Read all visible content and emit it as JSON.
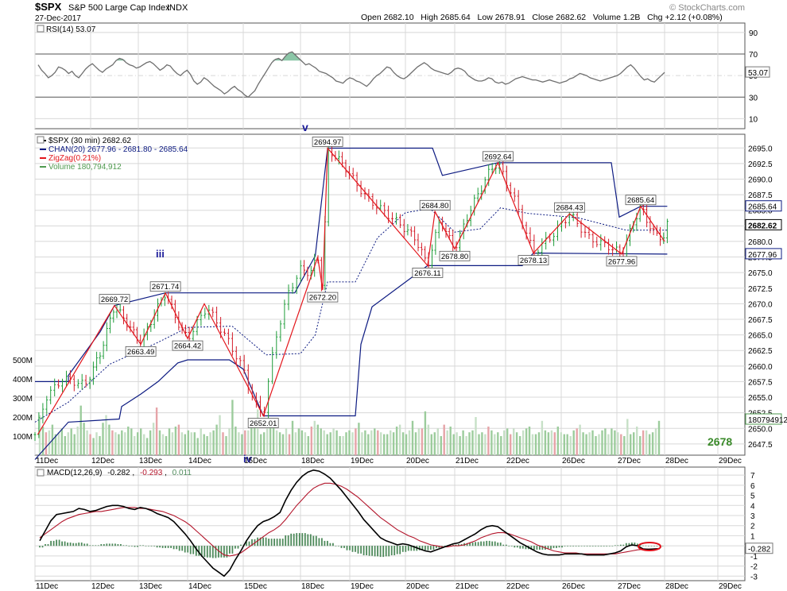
{
  "header": {
    "symbol": "$SPX",
    "name": "S&P 500 Large Cap Index",
    "exchange": "INDX",
    "date": "27-Dec-2017",
    "ohlc_text": "Open 2682.10   High 2685.64   Low 2678.91   Close 2682.62   Volume 1.2B   Chg +2.12 (+0.08%)",
    "watermark": "© StockCharts.com"
  },
  "colors": {
    "bg": "#ffffff",
    "grid": "#d8d8d8",
    "frame": "#555555",
    "price": "#000000",
    "up": "#1f9d3a",
    "down": "#d41e2a",
    "channel": "#0d1b82",
    "zigzag": "#e3151b",
    "volume": "#4f9a4f",
    "rsi_line": "#6f6f6f",
    "rsi_fill": "#8bc6a7",
    "macd_line": "#000000",
    "signal_line": "#b3152b",
    "histogram": "#4e8a5b",
    "wave_label": "#1b1b9a",
    "highlight": "#e0101a"
  },
  "rsi": {
    "label": "RSI(14) 53.07",
    "last": "53.07",
    "ticks": [
      "90",
      "70",
      "50",
      "30",
      "10"
    ],
    "overbought": 70,
    "oversold": 30
  },
  "price_panel": {
    "legend": [
      {
        "text": "$SPX (30 min) 2682.62",
        "color": "#000000"
      },
      {
        "text": "CHAN(20) 2677.96 - 2681.80 - 2685.64",
        "color": "#0d1b82"
      },
      {
        "text": "ZigZag(0.21%)",
        "color": "#e3151b"
      },
      {
        "text": "Volume 180,794,912",
        "color": "#4f9a4f"
      }
    ],
    "y_ticks": [
      "2695.0",
      "2692.5",
      "2690.0",
      "2687.5",
      "2685.0",
      "2682.5",
      "2680.0",
      "2677.5",
      "2675.0",
      "2672.5",
      "2670.0",
      "2667.5",
      "2665.0",
      "2662.5",
      "2660.0",
      "2657.5",
      "2655.0",
      "2652.5",
      "2650.0",
      "2647.5"
    ],
    "volume_ticks": [
      "500M",
      "400M",
      "300M",
      "200M",
      "100M"
    ],
    "price_tags": [
      "2685.64",
      "2682.62",
      "2677.96",
      "180794912"
    ],
    "wave_labels": [
      "iii",
      "v",
      "iv"
    ],
    "target": "2678"
  },
  "macd": {
    "label_prefix": "MACD(12,26,9)",
    "macd_value": "-0.282",
    "signal_value": "-0.293",
    "hist_value": "0.011",
    "ticks": [
      "7",
      "6",
      "5",
      "4",
      "3",
      "2",
      "1",
      "0",
      "-1",
      "-2",
      "-3"
    ],
    "last": "-0.282"
  },
  "x_axis": [
    "11Dec",
    "12Dec",
    "13Dec",
    "14Dec",
    "15Dec",
    "18Dec",
    "19Dec",
    "20Dec",
    "21Dec",
    "22Dec",
    "26Dec",
    "27Dec",
    "28Dec",
    "29Dec"
  ],
  "chart_data": {
    "type": "line",
    "title": "$SPX S&P 500 Large Cap Index",
    "interval": "30 min",
    "x": [
      "11Dec",
      "12Dec",
      "13Dec",
      "14Dec",
      "15Dec",
      "18Dec",
      "19Dec",
      "20Dec",
      "21Dec",
      "22Dec",
      "26Dec",
      "27Dec"
    ],
    "close_path": [
      {
        "day": 0.0,
        "value": 2649.0
      },
      {
        "day": 0.2,
        "value": 2655.0
      },
      {
        "day": 0.5,
        "value": 2658.0
      },
      {
        "day": 0.9,
        "value": 2657.0
      },
      {
        "day": 1.2,
        "value": 2662.0
      },
      {
        "day": 1.5,
        "value": 2669.72
      },
      {
        "day": 1.8,
        "value": 2666.5
      },
      {
        "day": 2.05,
        "value": 2663.49
      },
      {
        "day": 2.3,
        "value": 2668.0
      },
      {
        "day": 2.55,
        "value": 2671.74
      },
      {
        "day": 2.8,
        "value": 2667.0
      },
      {
        "day": 3.0,
        "value": 2664.42
      },
      {
        "day": 3.35,
        "value": 2669.5
      },
      {
        "day": 3.7,
        "value": 2664.5
      },
      {
        "day": 4.0,
        "value": 2659.5
      },
      {
        "day": 4.2,
        "value": 2654.0
      },
      {
        "day": 4.35,
        "value": 2652.01
      },
      {
        "day": 4.55,
        "value": 2664.0
      },
      {
        "day": 4.8,
        "value": 2672.0
      },
      {
        "day": 5.0,
        "value": 2675.5
      },
      {
        "day": 5.2,
        "value": 2675.0
      },
      {
        "day": 5.35,
        "value": 2677.5
      },
      {
        "day": 5.45,
        "value": 2672.2
      },
      {
        "day": 5.55,
        "value": 2694.97
      },
      {
        "day": 5.9,
        "value": 2692.0
      },
      {
        "day": 6.3,
        "value": 2687.0
      },
      {
        "day": 6.8,
        "value": 2683.5
      },
      {
        "day": 7.2,
        "value": 2680.5
      },
      {
        "day": 7.45,
        "value": 2676.11
      },
      {
        "day": 7.7,
        "value": 2683.5
      },
      {
        "day": 7.85,
        "value": 2681.0
      },
      {
        "day": 8.0,
        "value": 2678.8
      },
      {
        "day": 8.3,
        "value": 2685.0
      },
      {
        "day": 8.7,
        "value": 2691.5
      },
      {
        "day": 8.85,
        "value": 2692.64
      },
      {
        "day": 9.15,
        "value": 2687.0
      },
      {
        "day": 9.5,
        "value": 2678.13
      },
      {
        "day": 9.9,
        "value": 2681.5
      },
      {
        "day": 10.15,
        "value": 2684.43
      },
      {
        "day": 10.5,
        "value": 2680.5
      },
      {
        "day": 10.9,
        "value": 2679.0
      },
      {
        "day": 11.1,
        "value": 2677.96
      },
      {
        "day": 11.35,
        "value": 2683.0
      },
      {
        "day": 11.5,
        "value": 2685.64
      },
      {
        "day": 11.75,
        "value": 2681.5
      },
      {
        "day": 12.0,
        "value": 2680.5
      },
      {
        "day": 12.05,
        "value": 2682.62
      }
    ],
    "zigzag_pivots": [
      {
        "day": 0.05,
        "value": 2649.0
      },
      {
        "day": 1.5,
        "value": 2669.72
      },
      {
        "day": 2.05,
        "value": 2663.49
      },
      {
        "day": 2.55,
        "value": 2671.74
      },
      {
        "day": 3.0,
        "value": 2664.42
      },
      {
        "day": 3.3,
        "value": 2670.0
      },
      {
        "day": 4.35,
        "value": 2652.01
      },
      {
        "day": 5.35,
        "value": 2677.5
      },
      {
        "day": 5.45,
        "value": 2672.2
      },
      {
        "day": 5.55,
        "value": 2694.97
      },
      {
        "day": 7.45,
        "value": 2676.11
      },
      {
        "day": 7.6,
        "value": 2684.8
      },
      {
        "day": 8.0,
        "value": 2678.8
      },
      {
        "day": 8.85,
        "value": 2692.64
      },
      {
        "day": 9.5,
        "value": 2678.13
      },
      {
        "day": 10.15,
        "value": 2684.43
      },
      {
        "day": 11.1,
        "value": 2677.96
      },
      {
        "day": 11.5,
        "value": 2685.64
      },
      {
        "day": 12.0,
        "value": 2680.0
      }
    ],
    "pivot_labels": [
      {
        "text": "2669.72",
        "day": 1.5,
        "value": 2669.72,
        "pos": "above"
      },
      {
        "text": "2663.49",
        "day": 2.05,
        "value": 2663.49,
        "pos": "below"
      },
      {
        "text": "2671.74",
        "day": 2.55,
        "value": 2671.74,
        "pos": "above"
      },
      {
        "text": "2664.42",
        "day": 3.0,
        "value": 2664.42,
        "pos": "below"
      },
      {
        "text": "2652.01",
        "day": 4.35,
        "value": 2652.01,
        "pos": "below"
      },
      {
        "text": "2672.20",
        "day": 5.45,
        "value": 2672.2,
        "pos": "below"
      },
      {
        "text": "2694.97",
        "day": 5.55,
        "value": 2694.97,
        "pos": "above"
      },
      {
        "text": "2676.11",
        "day": 7.45,
        "value": 2676.11,
        "pos": "below"
      },
      {
        "text": "2684.80",
        "day": 7.6,
        "value": 2684.8,
        "pos": "above"
      },
      {
        "text": "2678.80",
        "day": 8.0,
        "value": 2678.8,
        "pos": "below"
      },
      {
        "text": "2692.64",
        "day": 8.85,
        "value": 2692.64,
        "pos": "above"
      },
      {
        "text": "2678.13",
        "day": 9.5,
        "value": 2678.13,
        "pos": "below"
      },
      {
        "text": "2684.43",
        "day": 10.15,
        "value": 2684.43,
        "pos": "above"
      },
      {
        "text": "2677.96",
        "day": 11.1,
        "value": 2677.96,
        "pos": "below"
      },
      {
        "text": "2685.64",
        "day": 11.5,
        "value": 2685.64,
        "pos": "above"
      }
    ],
    "channel_upper": [
      {
        "day": 0.0,
        "value": 2657.5
      },
      {
        "day": 0.6,
        "value": 2657.5
      },
      {
        "day": 0.6,
        "value": 2658.5
      },
      {
        "day": 1.2,
        "value": 2665.5
      },
      {
        "day": 1.5,
        "value": 2669.72
      },
      {
        "day": 2.55,
        "value": 2671.74
      },
      {
        "day": 4.9,
        "value": 2671.74
      },
      {
        "day": 5.3,
        "value": 2677.7
      },
      {
        "day": 5.55,
        "value": 2694.97
      },
      {
        "day": 7.55,
        "value": 2694.97
      },
      {
        "day": 7.75,
        "value": 2690.6
      },
      {
        "day": 8.85,
        "value": 2692.64
      },
      {
        "day": 10.9,
        "value": 2692.64
      },
      {
        "day": 11.05,
        "value": 2683.9
      },
      {
        "day": 11.5,
        "value": 2685.64
      },
      {
        "day": 12.05,
        "value": 2685.64
      }
    ],
    "channel_lower": [
      {
        "day": 0.0,
        "value": 2645.0
      },
      {
        "day": 0.6,
        "value": 2651.0
      },
      {
        "day": 1.6,
        "value": 2651.5
      },
      {
        "day": 1.65,
        "value": 2653.5
      },
      {
        "day": 2.05,
        "value": 2655.5
      },
      {
        "day": 2.4,
        "value": 2657.5
      },
      {
        "day": 2.8,
        "value": 2660.5
      },
      {
        "day": 3.0,
        "value": 2661.0
      },
      {
        "day": 3.75,
        "value": 2661.0
      },
      {
        "day": 4.0,
        "value": 2659.5
      },
      {
        "day": 4.35,
        "value": 2652.01
      },
      {
        "day": 6.1,
        "value": 2652.01
      },
      {
        "day": 6.2,
        "value": 2663.5
      },
      {
        "day": 6.4,
        "value": 2669.5
      },
      {
        "day": 7.45,
        "value": 2676.11
      },
      {
        "day": 9.3,
        "value": 2676.11
      },
      {
        "day": 9.5,
        "value": 2678.13
      },
      {
        "day": 12.05,
        "value": 2677.96
      }
    ],
    "channel_mid": [
      {
        "day": 0.0,
        "value": 2651.0
      },
      {
        "day": 0.6,
        "value": 2654.2
      },
      {
        "day": 1.4,
        "value": 2660.3
      },
      {
        "day": 2.4,
        "value": 2663.8
      },
      {
        "day": 3.0,
        "value": 2666.2
      },
      {
        "day": 3.8,
        "value": 2666.4
      },
      {
        "day": 4.4,
        "value": 2661.8
      },
      {
        "day": 5.0,
        "value": 2662.0
      },
      {
        "day": 5.3,
        "value": 2665.0
      },
      {
        "day": 5.55,
        "value": 2673.5
      },
      {
        "day": 6.1,
        "value": 2673.5
      },
      {
        "day": 6.5,
        "value": 2680.6
      },
      {
        "day": 7.0,
        "value": 2684.6
      },
      {
        "day": 7.5,
        "value": 2685.3
      },
      {
        "day": 8.0,
        "value": 2681.5
      },
      {
        "day": 8.5,
        "value": 2682.0
      },
      {
        "day": 8.9,
        "value": 2685.4
      },
      {
        "day": 9.4,
        "value": 2684.5
      },
      {
        "day": 10.3,
        "value": 2683.8
      },
      {
        "day": 11.2,
        "value": 2681.8
      },
      {
        "day": 12.05,
        "value": 2681.8
      }
    ],
    "volume_millions": [
      210,
      150,
      120,
      130,
      160,
      110,
      120,
      140,
      100,
      120,
      140,
      110,
      150,
      260,
      170,
      130,
      110,
      90,
      120,
      100,
      170,
      210,
      160,
      130,
      120,
      110,
      130,
      120,
      150,
      140,
      100,
      120,
      140,
      110,
      90,
      130,
      170,
      250,
      130,
      110,
      100,
      140,
      120,
      150,
      160,
      120,
      110,
      130,
      120,
      120,
      90,
      140,
      110,
      100,
      120,
      130,
      160,
      210,
      120,
      100,
      140,
      290,
      150,
      120,
      110,
      130,
      130,
      150,
      180,
      240,
      110,
      120,
      140,
      160,
      150,
      130,
      120,
      110,
      140,
      110,
      180,
      120,
      140,
      130,
      120,
      100,
      150,
      180,
      160,
      140,
      130,
      110,
      120,
      140,
      130,
      100,
      100,
      120,
      130,
      120,
      140,
      170,
      120,
      130,
      110,
      130,
      140,
      130,
      120,
      110,
      110,
      130,
      120,
      150,
      160,
      120,
      110,
      130,
      180,
      120,
      140,
      140,
      230,
      160,
      110,
      120,
      140,
      100,
      160,
      130,
      150,
      110,
      120,
      100,
      130,
      100,
      120,
      130,
      200,
      110,
      120,
      110,
      150,
      130,
      110,
      120,
      100,
      130,
      140,
      110,
      140,
      120,
      100,
      130,
      140,
      150,
      110,
      110,
      120,
      180,
      130,
      120,
      130,
      120,
      150,
      120,
      110,
      110,
      100,
      130,
      140,
      160,
      120,
      110,
      120,
      130,
      100,
      110,
      130,
      140,
      110,
      140,
      130,
      120,
      110,
      100,
      190,
      110,
      120,
      150,
      100,
      130,
      130,
      110,
      120,
      140,
      180
    ],
    "rsi_values": [
      60,
      55,
      52,
      48,
      50,
      53,
      58,
      57,
      55,
      52,
      54,
      50,
      48,
      52,
      56,
      59,
      61,
      58,
      55,
      53,
      56,
      58,
      60,
      64,
      66,
      65,
      62,
      60,
      59,
      57,
      58,
      60,
      62,
      63,
      61,
      58,
      55,
      57,
      60,
      59,
      55,
      52,
      50,
      53,
      55,
      51,
      45,
      42,
      44,
      48,
      46,
      43,
      40,
      38,
      36,
      33,
      35,
      38,
      40,
      37,
      35,
      32,
      30,
      33,
      36,
      42,
      47,
      52,
      57,
      62,
      65,
      66,
      64,
      68,
      71,
      72,
      69,
      66,
      63,
      60,
      61,
      59,
      57,
      54,
      53,
      52,
      50,
      48,
      45,
      44,
      43,
      46,
      48,
      47,
      45,
      44,
      42,
      40,
      43,
      47,
      50,
      52,
      55,
      58,
      57,
      53,
      50,
      48,
      47,
      49,
      52,
      55,
      58,
      60,
      62,
      60,
      57,
      55,
      54,
      53,
      52,
      51,
      53,
      56,
      57,
      56,
      54,
      50,
      48,
      46,
      45,
      45,
      46,
      48,
      47,
      44,
      43,
      44,
      42,
      43,
      45,
      47,
      48,
      49,
      48,
      47,
      46,
      46,
      45,
      44,
      45,
      46,
      45,
      44,
      43,
      44,
      45,
      47,
      48,
      50,
      52,
      51,
      50,
      48,
      47,
      46,
      45,
      46,
      47,
      48,
      49,
      50,
      52,
      55,
      58,
      60,
      57,
      53,
      49,
      46,
      47,
      45,
      44,
      47,
      50,
      53
    ],
    "macd_values": [
      0.5,
      1.5,
      2.5,
      3.1,
      3.2,
      3.3,
      3.4,
      3.7,
      3.6,
      3.4,
      3.5,
      3.7,
      3.9,
      4.0,
      4.0,
      3.9,
      3.7,
      3.6,
      3.8,
      3.7,
      3.5,
      3.2,
      3.0,
      2.8,
      2.4,
      1.8,
      1.2,
      0.5,
      -0.3,
      -1.0,
      -1.6,
      -2.2,
      -2.6,
      -3.0,
      -2.4,
      -1.4,
      -0.5,
      0.5,
      1.3,
      2.0,
      2.4,
      2.6,
      2.9,
      3.3,
      4.5,
      5.5,
      6.3,
      6.9,
      7.3,
      7.5,
      7.4,
      7.1,
      6.7,
      6.1,
      5.5,
      4.8,
      4.1,
      3.4,
      2.6,
      2.0,
      1.4,
      0.8,
      0.5,
      0.3,
      0.1,
      0.2,
      0.1,
      -0.1,
      -0.3,
      -0.5,
      -0.6,
      -0.4,
      -0.2,
      0.0,
      0.2,
      0.3,
      0.6,
      0.9,
      1.2,
      1.6,
      1.9,
      2.0,
      1.9,
      1.5,
      1.1,
      0.7,
      0.3,
      0.0,
      -0.3,
      -0.6,
      -0.8,
      -0.9,
      -0.9,
      -0.9,
      -0.8,
      -0.8,
      -0.8,
      -0.8,
      -0.9,
      -0.9,
      -0.9,
      -0.9,
      -0.8,
      -0.7,
      -0.5,
      -0.1,
      0.1,
      0.0,
      -0.3,
      -0.35,
      -0.3,
      -0.282
    ],
    "signal_values": [
      0.8,
      1.2,
      1.6,
      2.0,
      2.4,
      2.7,
      2.9,
      3.1,
      3.2,
      3.3,
      3.4,
      3.4,
      3.5,
      3.6,
      3.7,
      3.8,
      3.8,
      3.8,
      3.7,
      3.7,
      3.6,
      3.5,
      3.4,
      3.2,
      3.0,
      2.7,
      2.4,
      2.0,
      1.5,
      1.0,
      0.5,
      0.0,
      -0.5,
      -0.9,
      -1.0,
      -0.9,
      -0.7,
      -0.3,
      0.1,
      0.5,
      0.9,
      1.3,
      1.6,
      2.0,
      2.6,
      3.3,
      4.0,
      4.6,
      5.2,
      5.7,
      6.0,
      6.2,
      6.2,
      6.1,
      5.9,
      5.6,
      5.2,
      4.8,
      4.3,
      3.8,
      3.3,
      2.8,
      2.4,
      2.0,
      1.6,
      1.3,
      1.0,
      0.8,
      0.5,
      0.3,
      0.1,
      0.0,
      -0.1,
      -0.1,
      0.0,
      0.0,
      0.1,
      0.3,
      0.5,
      0.8,
      1.0,
      1.2,
      1.3,
      1.3,
      1.2,
      1.0,
      0.8,
      0.6,
      0.4,
      0.1,
      -0.1,
      -0.3,
      -0.5,
      -0.6,
      -0.7,
      -0.7,
      -0.7,
      -0.8,
      -0.8,
      -0.8,
      -0.8,
      -0.8,
      -0.8,
      -0.8,
      -0.7,
      -0.6,
      -0.5,
      -0.4,
      -0.35,
      -0.32,
      -0.3,
      -0.293
    ],
    "rsi_ylim": [
      0,
      100
    ],
    "price_ylim": [
      2645.7,
      2697.2
    ],
    "volume_ylim": [
      0,
      600
    ],
    "macd_ylim": [
      -3.45,
      7.8
    ]
  }
}
